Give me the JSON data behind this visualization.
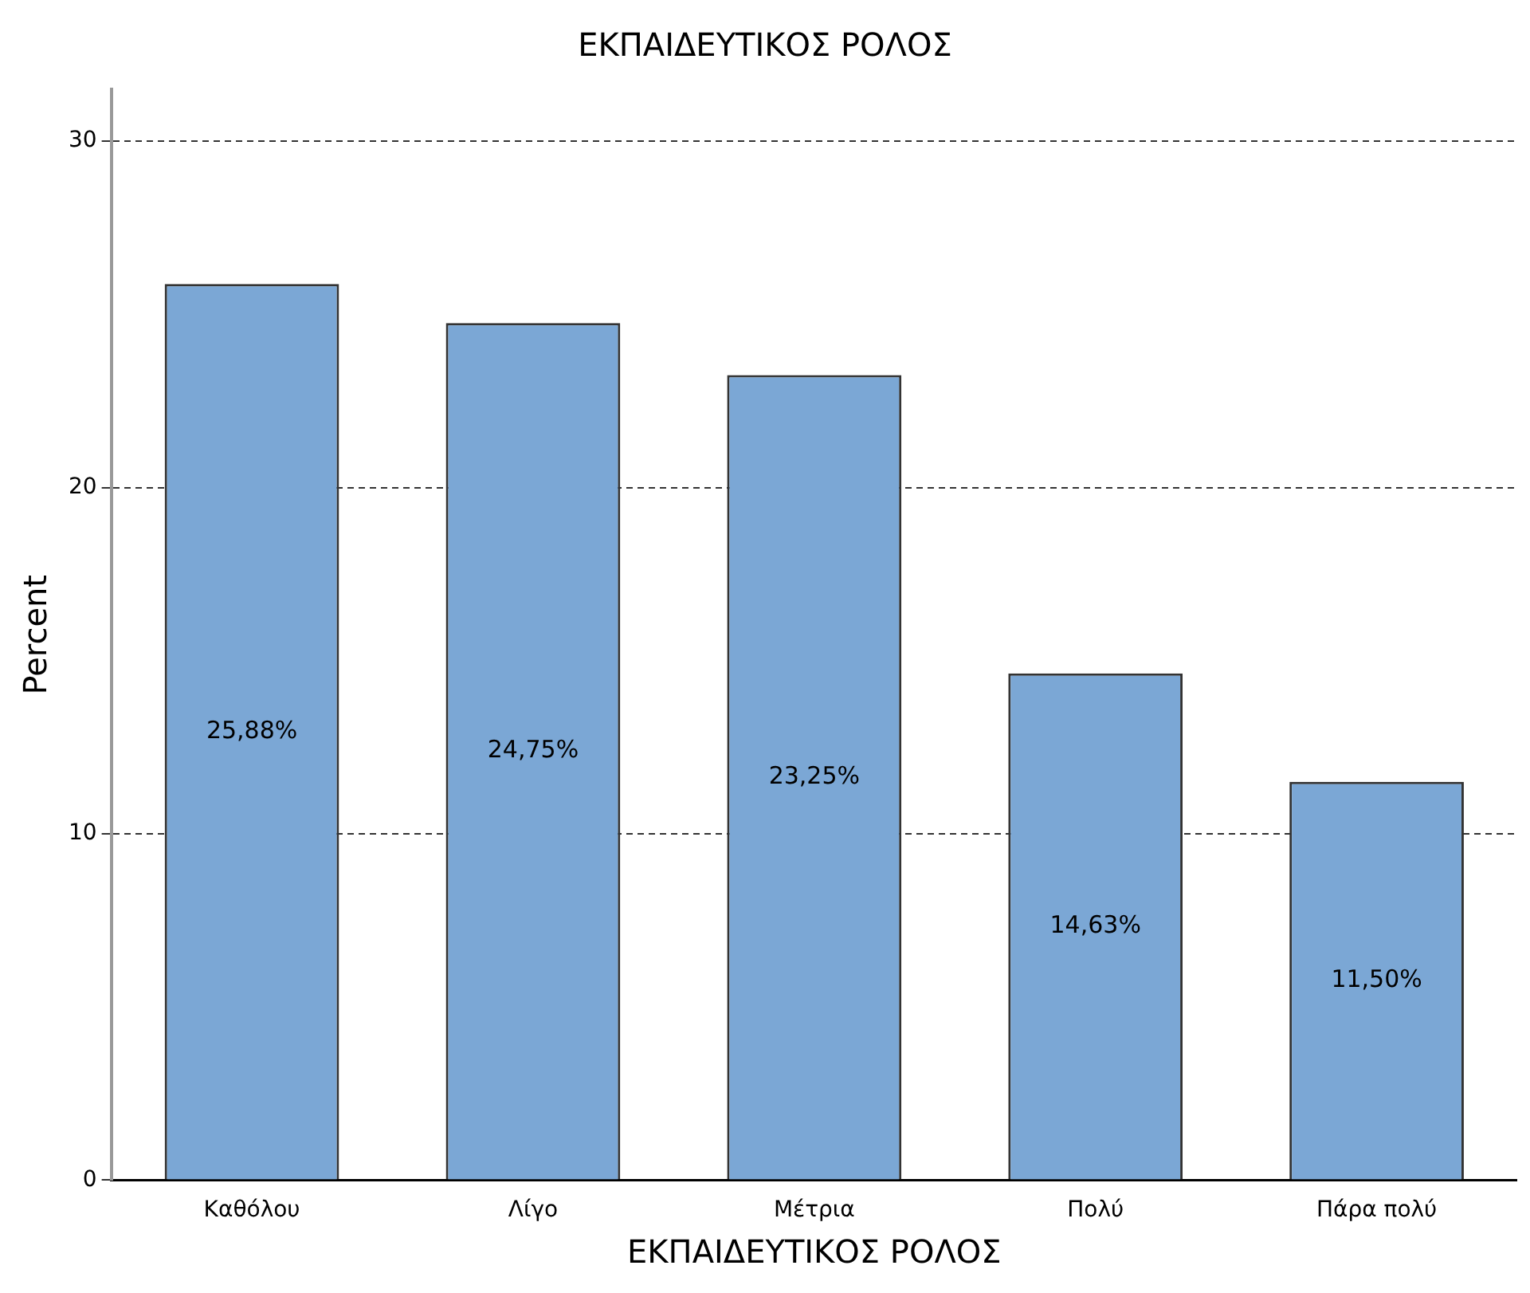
{
  "chart_data": {
    "type": "bar",
    "title": "ΕΚΠΑΙΔΕΥΤΙΚΟΣ ΡΟΛΟΣ",
    "xlabel": "ΕΚΠΑΙΔΕΥΤΙΚΟΣ ΡΟΛΟΣ",
    "ylabel": "Percent",
    "categories": [
      "Καθόλου",
      "Λίγο",
      "Μέτρια",
      "Πολύ",
      "Πάρα πολύ"
    ],
    "values": [
      25.88,
      24.75,
      23.25,
      14.63,
      11.5
    ],
    "value_labels": [
      "25,88%",
      "24,75%",
      "23,25%",
      "14,63%",
      "11,50%"
    ],
    "color": "#7ba7d5",
    "ylim": [
      0,
      31.5
    ],
    "yticks": [
      0,
      10,
      20,
      30
    ],
    "grid": "y",
    "legend": false
  }
}
